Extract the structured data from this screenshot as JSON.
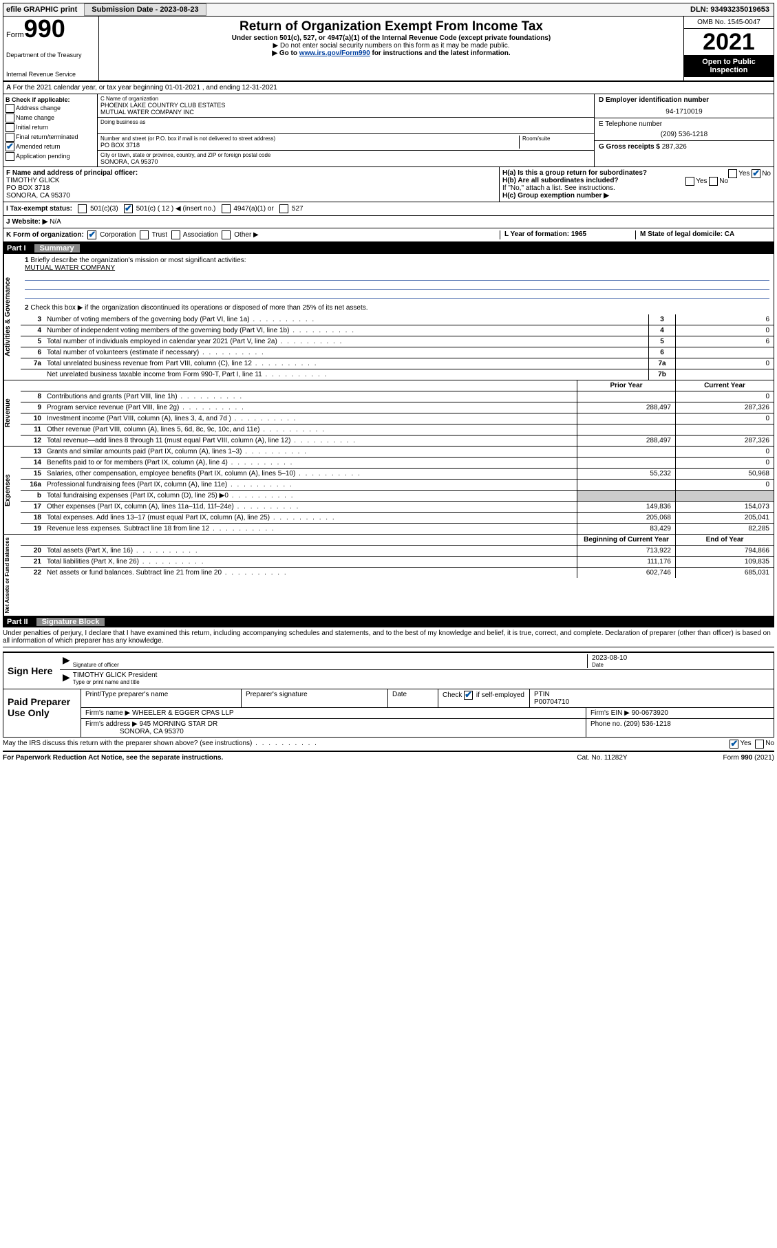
{
  "topbar": {
    "efile": "efile GRAPHIC print",
    "sub_label": "Submission Date - 2023-08-23",
    "dln": "DLN: 93493235019653"
  },
  "header": {
    "form_word": "Form",
    "form_num": "990",
    "dept": "Department of the Treasury",
    "irs": "Internal Revenue Service",
    "title": "Return of Organization Exempt From Income Tax",
    "sub": "Under section 501(c), 527, or 4947(a)(1) of the Internal Revenue Code (except private foundations)",
    "note1": "▶ Do not enter social security numbers on this form as it may be made public.",
    "note2_pre": "▶ Go to ",
    "note2_link": "www.irs.gov/Form990",
    "note2_post": " for instructions and the latest information.",
    "omb": "OMB No. 1545-0047",
    "year": "2021",
    "open": "Open to Public Inspection"
  },
  "lineA": "For the 2021 calendar year, or tax year beginning 01-01-2021  , and ending 12-31-2021",
  "boxB": {
    "title": "B Check if applicable:",
    "opts": [
      "Address change",
      "Name change",
      "Initial return",
      "Final return/terminated",
      "Amended return",
      "Application pending"
    ],
    "checked_idx": 4
  },
  "boxC": {
    "name_label": "C Name of organization",
    "name1": "PHOENIX LAKE COUNTRY CLUB ESTATES",
    "name2": "MUTUAL WATER COMPANY INC",
    "dba_label": "Doing business as",
    "street_label": "Number and street (or P.O. box if mail is not delivered to street address)",
    "room_label": "Room/suite",
    "street": "PO BOX 3718",
    "city_label": "City or town, state or province, country, and ZIP or foreign postal code",
    "city": "SONORA, CA  95370"
  },
  "boxD": {
    "label": "D Employer identification number",
    "value": "94-1710019"
  },
  "boxE": {
    "label": "E Telephone number",
    "value": "(209) 536-1218"
  },
  "boxG": {
    "label": "G Gross receipts $",
    "value": "287,326"
  },
  "boxF": {
    "label": "F  Name and address of principal officer:",
    "name": "TIMOTHY GLICK",
    "addr1": "PO BOX 3718",
    "addr2": "SONORA, CA  95370"
  },
  "boxH": {
    "a": "H(a)  Is this a group return for subordinates?",
    "b": "H(b)  Are all subordinates included?",
    "note": "If \"No,\" attach a list. See instructions.",
    "c": "H(c)  Group exemption number ▶"
  },
  "yesno": {
    "yes": "Yes",
    "no": "No"
  },
  "rowI": {
    "label": "I  Tax-exempt status:",
    "c12": "501(c) ( 12 ) ◀ (insert no.)",
    "c3": "501(c)(3)",
    "a1": "4947(a)(1) or",
    "s527": "527"
  },
  "rowJ": {
    "label": "J  Website: ▶",
    "value": "N/A"
  },
  "rowK": {
    "label": "K Form of organization:",
    "corp": "Corporation",
    "trust": "Trust",
    "assoc": "Association",
    "other": "Other ▶"
  },
  "rowL": {
    "label": "L Year of formation: 1965"
  },
  "rowM": {
    "label": "M State of legal domicile: CA"
  },
  "part1": {
    "num": "Part I",
    "title": "Summary"
  },
  "sidetabs": {
    "ag": "Activities & Governance",
    "rev": "Revenue",
    "exp": "Expenses",
    "na": "Net Assets or Fund Balances"
  },
  "summary": {
    "q1": "Briefly describe the organization's mission or most significant activities:",
    "q1_val": "MUTUAL WATER COMPANY",
    "q2": "Check this box ▶   if the organization discontinued its operations or disposed of more than 25% of its net assets.",
    "rows_ag": [
      {
        "n": "3",
        "d": "Number of voting members of the governing body (Part VI, line 1a)",
        "b": "3",
        "v": "6"
      },
      {
        "n": "4",
        "d": "Number of independent voting members of the governing body (Part VI, line 1b)",
        "b": "4",
        "v": "0"
      },
      {
        "n": "5",
        "d": "Total number of individuals employed in calendar year 2021 (Part V, line 2a)",
        "b": "5",
        "v": "6"
      },
      {
        "n": "6",
        "d": "Total number of volunteers (estimate if necessary)",
        "b": "6",
        "v": ""
      },
      {
        "n": "7a",
        "d": "Total unrelated business revenue from Part VIII, column (C), line 12",
        "b": "7a",
        "v": "0"
      },
      {
        "n": "",
        "d": "Net unrelated business taxable income from Form 990-T, Part I, line 11",
        "b": "7b",
        "v": ""
      }
    ],
    "col_prior": "Prior Year",
    "col_current": "Current Year",
    "rows_rev": [
      {
        "n": "8",
        "d": "Contributions and grants (Part VIII, line 1h)",
        "p": "",
        "c": "0"
      },
      {
        "n": "9",
        "d": "Program service revenue (Part VIII, line 2g)",
        "p": "288,497",
        "c": "287,326"
      },
      {
        "n": "10",
        "d": "Investment income (Part VIII, column (A), lines 3, 4, and 7d )",
        "p": "",
        "c": "0"
      },
      {
        "n": "11",
        "d": "Other revenue (Part VIII, column (A), lines 5, 6d, 8c, 9c, 10c, and 11e)",
        "p": "",
        "c": ""
      },
      {
        "n": "12",
        "d": "Total revenue—add lines 8 through 11 (must equal Part VIII, column (A), line 12)",
        "p": "288,497",
        "c": "287,326"
      }
    ],
    "rows_exp": [
      {
        "n": "13",
        "d": "Grants and similar amounts paid (Part IX, column (A), lines 1–3)",
        "p": "",
        "c": "0"
      },
      {
        "n": "14",
        "d": "Benefits paid to or for members (Part IX, column (A), line 4)",
        "p": "",
        "c": "0"
      },
      {
        "n": "15",
        "d": "Salaries, other compensation, employee benefits (Part IX, column (A), lines 5–10)",
        "p": "55,232",
        "c": "50,968"
      },
      {
        "n": "16a",
        "d": "Professional fundraising fees (Part IX, column (A), line 11e)",
        "p": "",
        "c": "0"
      },
      {
        "n": "b",
        "d": "Total fundraising expenses (Part IX, column (D), line 25) ▶0",
        "p": "—",
        "c": "—"
      },
      {
        "n": "17",
        "d": "Other expenses (Part IX, column (A), lines 11a–11d, 11f–24e)",
        "p": "149,836",
        "c": "154,073"
      },
      {
        "n": "18",
        "d": "Total expenses. Add lines 13–17 (must equal Part IX, column (A), line 25)",
        "p": "205,068",
        "c": "205,041"
      },
      {
        "n": "19",
        "d": "Revenue less expenses. Subtract line 18 from line 12",
        "p": "83,429",
        "c": "82,285"
      }
    ],
    "col_beg": "Beginning of Current Year",
    "col_end": "End of Year",
    "rows_na": [
      {
        "n": "20",
        "d": "Total assets (Part X, line 16)",
        "p": "713,922",
        "c": "794,866"
      },
      {
        "n": "21",
        "d": "Total liabilities (Part X, line 26)",
        "p": "111,176",
        "c": "109,835"
      },
      {
        "n": "22",
        "d": "Net assets or fund balances. Subtract line 21 from line 20",
        "p": "602,746",
        "c": "685,031"
      }
    ]
  },
  "part2": {
    "num": "Part II",
    "title": "Signature Block"
  },
  "penalties": "Under penalties of perjury, I declare that I have examined this return, including accompanying schedules and statements, and to the best of my knowledge and belief, it is true, correct, and complete. Declaration of preparer (other than officer) is based on all information of which preparer has any knowledge.",
  "sign": {
    "here": "Sign Here",
    "sig_label": "Signature of officer",
    "date_label": "Date",
    "date": "2023-08-10",
    "name": "TIMOTHY GLICK President",
    "name_label": "Type or print name and title"
  },
  "prep": {
    "here": "Paid Preparer Use Only",
    "h1": "Print/Type preparer's name",
    "h2": "Preparer's signature",
    "h3": "Date",
    "h4_pre": "Check",
    "h4_post": "if self-employed",
    "h5": "PTIN",
    "ptin": "P00704710",
    "firm_label": "Firm's name   ▶",
    "firm": "WHEELER & EGGER CPAS LLP",
    "ein_label": "Firm's EIN ▶",
    "ein": "90-0673920",
    "addr_label": "Firm's address ▶",
    "addr1": "945 MORNING STAR DR",
    "addr2": "SONORA, CA  95370",
    "phone_label": "Phone no.",
    "phone": "(209) 536-1218"
  },
  "may": "May the IRS discuss this return with the preparer shown above? (see instructions)",
  "footer": {
    "pra": "For Paperwork Reduction Act Notice, see the separate instructions.",
    "cat": "Cat. No. 11282Y",
    "form": "Form 990 (2021)"
  }
}
